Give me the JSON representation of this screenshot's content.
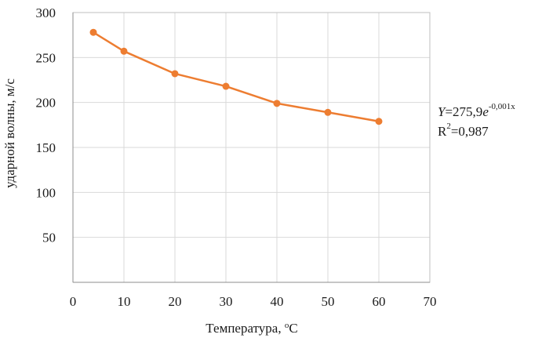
{
  "chart_data": {
    "type": "line",
    "title": "",
    "xlabel": "Температура, ",
    "xlabel_unit_sup": "o",
    "xlabel_unit": "C",
    "ylabel": "ударной волны, м/с",
    "xlim": [
      0,
      70
    ],
    "ylim": [
      0,
      300
    ],
    "xticks": [
      0,
      10,
      20,
      30,
      40,
      50,
      60,
      70
    ],
    "yticks": [
      50,
      100,
      150,
      200,
      250,
      300
    ],
    "grid": true,
    "series": [
      {
        "color": "#ed7d31",
        "x": [
          4,
          10,
          20,
          30,
          40,
          50,
          60
        ],
        "y": [
          278,
          257,
          232,
          218,
          199,
          189,
          179
        ]
      }
    ],
    "annotation": {
      "y_symbol": "Y",
      "eq_prefix": "=275,9",
      "e_symbol": "e",
      "exponent": "-0,001x",
      "r2_prefix": "R",
      "r2_sup": "2",
      "r2_value": "=0,987"
    }
  }
}
